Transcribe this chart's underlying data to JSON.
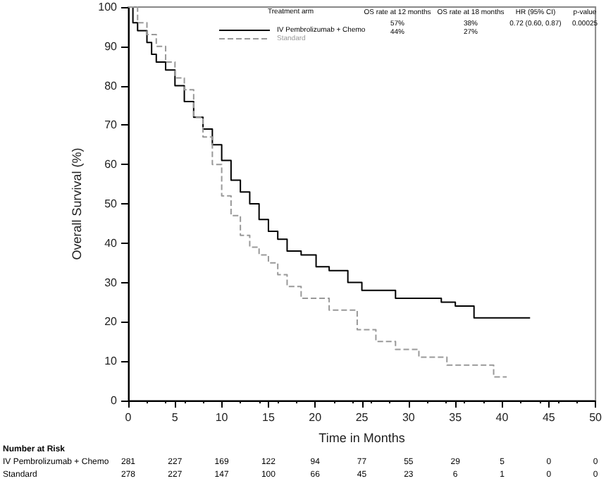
{
  "chart_data": {
    "type": "step",
    "xlabel": "Time in Months",
    "ylabel": "Overall Survival (%)",
    "legend_title": "Treatment arm",
    "legend": "top",
    "grid": false,
    "xlim": [
      0,
      50
    ],
    "xticks": [
      0,
      5,
      10,
      15,
      20,
      25,
      30,
      35,
      40,
      45,
      50
    ],
    "ylim": [
      0,
      100
    ],
    "yticks": [
      0,
      10,
      20,
      30,
      40,
      50,
      60,
      70,
      80,
      90,
      100
    ],
    "series": [
      {
        "name": "IV Pembrolizumab + Chemo",
        "color": "#000000",
        "line_style": "solid",
        "x": [
          0,
          0.5,
          1,
          2,
          2.5,
          3,
          4,
          5,
          6,
          7,
          8,
          9,
          10,
          11,
          12,
          13,
          14,
          15,
          16,
          17,
          18.5,
          20.1,
          21.5,
          23.5,
          25,
          28.6,
          33.5,
          35,
          37,
          43
        ],
        "values": [
          100,
          96,
          94,
          91,
          88,
          86,
          84,
          80,
          76,
          72,
          69,
          65,
          61,
          56,
          53,
          50,
          46,
          43,
          41,
          38,
          37,
          34,
          33,
          30,
          28,
          26,
          25,
          24,
          21,
          21
        ]
      },
      {
        "name": "Standard",
        "color": "#999999",
        "line_style": "dashed",
        "x": [
          0,
          1,
          2,
          3,
          4,
          5,
          6,
          7,
          8,
          9,
          10,
          11,
          12,
          13,
          14,
          15,
          16,
          17,
          18.5,
          21.5,
          24.5,
          26.5,
          28.6,
          31.1,
          34.1,
          35,
          38.6,
          39.1,
          40.5
        ],
        "values": [
          100,
          96,
          93,
          90,
          86,
          82,
          79,
          72,
          67,
          60,
          52,
          47,
          42,
          39,
          37,
          35,
          32,
          29,
          26,
          23,
          18,
          15,
          13,
          11,
          9,
          9,
          9,
          6,
          6
        ]
      }
    ],
    "annotations": [
      "OS rate at 12 months",
      "OS rate at 18 months",
      "HR (95% CI)",
      "p-value",
      "57%",
      "38%",
      "0.72 (0.60, 0.87)",
      "0.00025",
      "44%",
      "27%",
      "Number at Risk",
      "IV Pembrolizumab + Chemo",
      "281",
      "227",
      "169",
      "122",
      "94",
      "77",
      "55",
      "29",
      "5",
      "0",
      "0",
      "Standard",
      "278",
      "227",
      "147",
      "100",
      "66",
      "45",
      "23",
      "6",
      "1",
      "0",
      "0"
    ]
  }
}
